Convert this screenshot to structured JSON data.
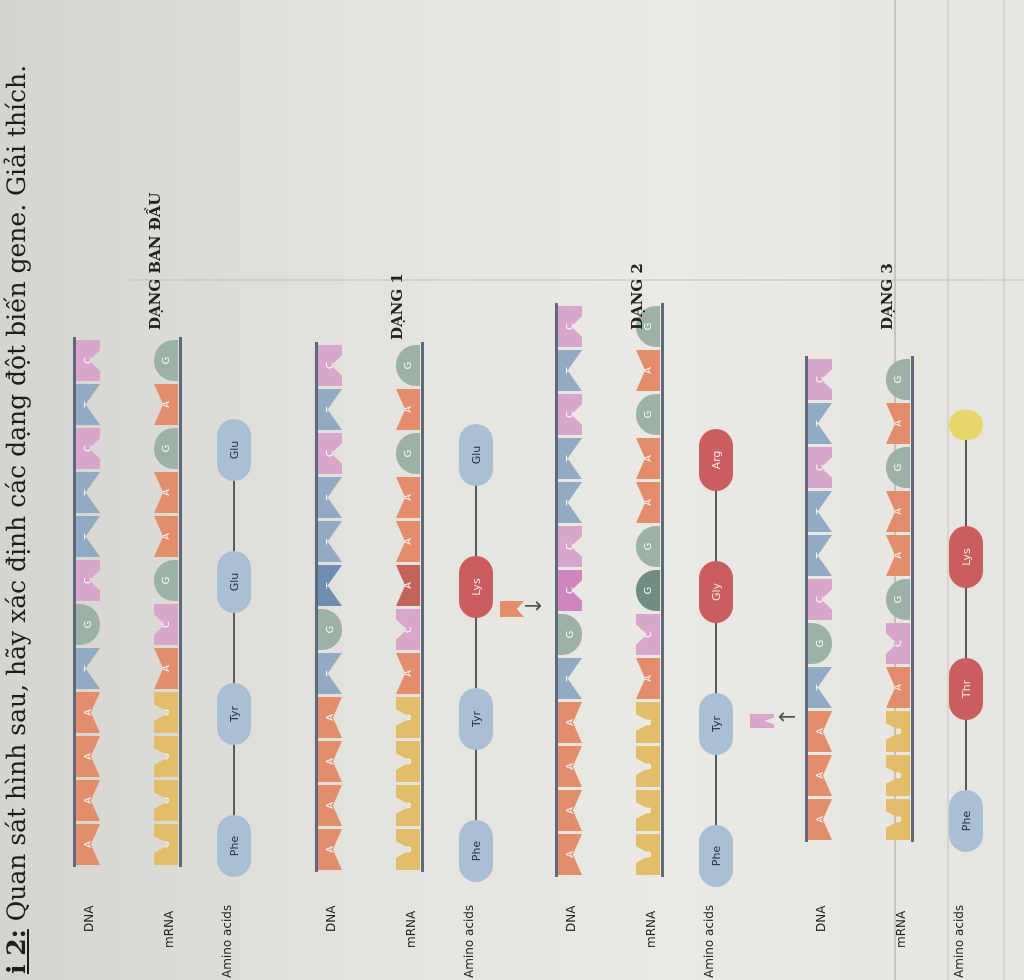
{
  "question": {
    "number_prefix": "i 2:",
    "text": "Quan sát hình sau, hãy xác định các dạng đột biến gene. Giải thích."
  },
  "row_labels": {
    "dna": "DNA",
    "mrna": "mRNA",
    "amino": "Amino acids"
  },
  "panels": [
    {
      "label": "DẠNG BAN ĐẦU",
      "dna": [
        "A",
        "A",
        "A",
        "A",
        "T",
        "G",
        "C",
        "T",
        "T",
        "C",
        "T",
        "C"
      ],
      "mrna": [
        "U",
        "U",
        "U",
        "U",
        "A",
        "C",
        "G",
        "A",
        "A",
        "G",
        "A",
        "G"
      ],
      "mutated_index": -1,
      "marker": "none",
      "amino_acids": [
        "Phe",
        "Tyr",
        "Glu",
        "Glu"
      ]
    },
    {
      "label": "DẠNG 1",
      "dna": [
        "A",
        "A",
        "A",
        "A",
        "T",
        "G",
        "T",
        "T",
        "T",
        "C",
        "T",
        "C"
      ],
      "mrna": [
        "U",
        "U",
        "U",
        "U",
        "A",
        "C",
        "A",
        "A",
        "A",
        "G",
        "A",
        "G"
      ],
      "mutated_index": 6,
      "marker": "none",
      "amino_acids": [
        "Phe",
        "Tyr",
        "Lys",
        "Glu"
      ]
    },
    {
      "label": "DẠNG 2",
      "dna": [
        "A",
        "A",
        "A",
        "A",
        "T",
        "G",
        "C",
        "C",
        "T",
        "T",
        "C",
        "T",
        "C"
      ],
      "mrna": [
        "U",
        "U",
        "U",
        "U",
        "A",
        "C",
        "G",
        "G",
        "A",
        "A",
        "G",
        "A",
        "G"
      ],
      "mutated_index": 6,
      "marker": "insertion",
      "amino_acids": [
        "Phe",
        "Tyr",
        "Gly",
        "Arg"
      ]
    },
    {
      "label": "DẠNG 3",
      "dna": [
        "A",
        "A",
        "A",
        "T",
        "G",
        "C",
        "T",
        "T",
        "C",
        "T",
        "C"
      ],
      "mrna": [
        "U",
        "U",
        "U",
        "A",
        "C",
        "G",
        "A",
        "A",
        "G",
        "A",
        "G"
      ],
      "mutated_index": -1,
      "marker": "deletion",
      "amino_acids": [
        "Phe",
        "Thr",
        "Lys",
        "Stop"
      ]
    }
  ]
}
